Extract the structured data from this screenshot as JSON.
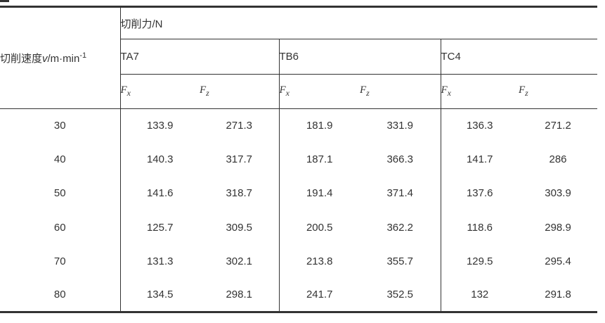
{
  "page": {
    "background": "#ffffff",
    "text_color": "#333333",
    "line_color": "#333333"
  },
  "table": {
    "force_header": "切削力/N",
    "speed_header": {
      "text": "切削速度",
      "variable": "v",
      "unit": "/m·min",
      "exponent": "-1"
    },
    "groups": [
      {
        "label": "TA7"
      },
      {
        "label": "TB6"
      },
      {
        "label": "TC4"
      }
    ],
    "sub_columns": [
      {
        "letter": "F",
        "subscript": "x"
      },
      {
        "letter": "F",
        "subscript": "z"
      }
    ],
    "rows": [
      {
        "speed": "30",
        "values": [
          "133.9",
          "271.3",
          "181.9",
          "331.9",
          "136.3",
          "271.2"
        ]
      },
      {
        "speed": "40",
        "values": [
          "140.3",
          "317.7",
          "187.1",
          "366.3",
          "141.7",
          "286"
        ]
      },
      {
        "speed": "50",
        "values": [
          "141.6",
          "318.7",
          "191.4",
          "371.4",
          "137.6",
          "303.9"
        ]
      },
      {
        "speed": "60",
        "values": [
          "125.7",
          "309.5",
          "200.5",
          "362.2",
          "118.6",
          "298.9"
        ]
      },
      {
        "speed": "70",
        "values": [
          "131.3",
          "302.1",
          "213.8",
          "355.7",
          "129.5",
          "295.4"
        ]
      },
      {
        "speed": "80",
        "values": [
          "134.5",
          "298.1",
          "241.7",
          "352.5",
          "132",
          "291.8"
        ]
      }
    ]
  }
}
